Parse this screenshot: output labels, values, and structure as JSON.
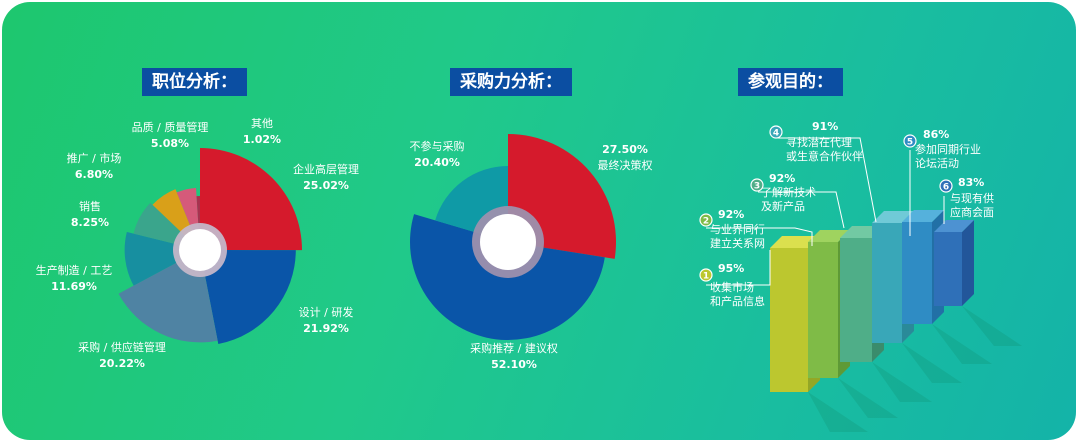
{
  "titles": {
    "position": "职位分析：",
    "purchase": "采购力分析：",
    "visit": "参观目的："
  },
  "colors": {
    "red": "#d51a2c",
    "blue": "#0a55a8",
    "teal": "#0f9aa6",
    "navy": "#0b4ea2"
  },
  "chart_data": [
    {
      "type": "pie",
      "title": "职位分析：",
      "slices": [
        {
          "name": "企业高层管理",
          "value": 25.02,
          "label": "25.02%",
          "color": "#d51a2c"
        },
        {
          "name": "设计 / 研发",
          "value": 21.92,
          "label": "21.92%",
          "color": "#0a55a8"
        },
        {
          "name": "采购 / 供应链管理",
          "value": 20.22,
          "label": "20.22%",
          "color": "#4f83a3"
        },
        {
          "name": "生产制造 / 工艺",
          "value": 11.69,
          "label": "11.69%",
          "color": "#178fa0"
        },
        {
          "name": "销售",
          "value": 8.25,
          "label": "8.25%",
          "color": "#3aa58c"
        },
        {
          "name": "推广 / 市场",
          "value": 6.8,
          "label": "6.80%",
          "color": "#d9a019"
        },
        {
          "name": "品质 / 质量管理",
          "value": 5.08,
          "label": "5.08%",
          "color": "#d55a7a"
        },
        {
          "name": "其他",
          "value": 1.02,
          "label": "1.02%",
          "color": "#a83250"
        }
      ]
    },
    {
      "type": "pie",
      "title": "采购力分析：",
      "slices": [
        {
          "name": "最终决策权",
          "value": 27.5,
          "label": "27.50%",
          "color": "#d51a2c"
        },
        {
          "name": "采购推荐 / 建议权",
          "value": 52.1,
          "label": "52.10%",
          "color": "#0a55a8"
        },
        {
          "name": "不参与采购",
          "value": 20.4,
          "label": "20.40%",
          "color": "#0f9aa6"
        }
      ]
    },
    {
      "type": "bar",
      "title": "参观目的：",
      "categories": [
        {
          "index": "1",
          "lines": [
            "收集市场",
            "和产品信息"
          ]
        },
        {
          "index": "2",
          "lines": [
            "与业界同行",
            "建立关系网"
          ]
        },
        {
          "index": "3",
          "lines": [
            "了解新技术",
            "及新产品"
          ]
        },
        {
          "index": "4",
          "lines": [
            "寻找潜在代理",
            "或生意合作伙伴"
          ]
        },
        {
          "index": "5",
          "lines": [
            "参加同期行业",
            "论坛活动"
          ]
        },
        {
          "index": "6",
          "lines": [
            "与现有供",
            "应商会面"
          ]
        }
      ],
      "values": [
        95,
        92,
        92,
        91,
        86,
        83
      ],
      "value_labels": [
        "95%",
        "92%",
        "92%",
        "91%",
        "86%",
        "83%"
      ]
    }
  ]
}
